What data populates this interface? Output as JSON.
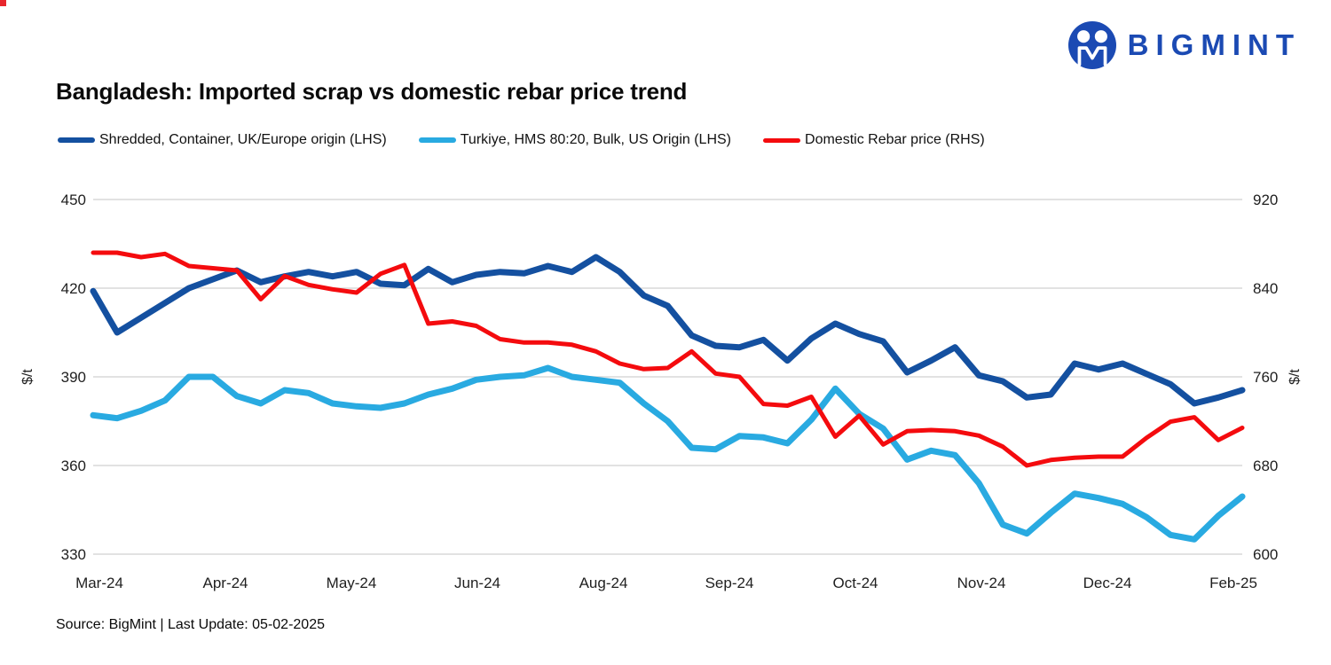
{
  "logo": {
    "text": "BIGMINT"
  },
  "title": "Bangladesh: Imported scrap vs domestic rebar price trend",
  "legend": [
    {
      "label": "Shredded, Container, UK/Europe origin (LHS)",
      "color": "#1450a0"
    },
    {
      "label": "Turkiye, HMS 80:20, Bulk, US Origin (LHS)",
      "color": "#29aae1"
    },
    {
      "label": "Domestic Rebar price (RHS)",
      "color": "#f40b0e"
    }
  ],
  "source": "Source: BigMint | Last Update: 05-02-2025",
  "colors": {
    "shredded_line": "#1450a0",
    "turkiye_line": "#29aae1",
    "rebar_line": "#f40b0e",
    "gridline": "#d9d9d9",
    "axis_text": "#1f1f1f",
    "logo_blue": "#1b4ab3"
  },
  "chart_data": {
    "type": "line",
    "title": "Bangladesh: Imported scrap vs domestic rebar price trend",
    "grid": true,
    "legend_position": "top",
    "left_axis": {
      "label": "$/t",
      "min": 330,
      "max": 450,
      "ticks": [
        450,
        420,
        390,
        360,
        330
      ]
    },
    "right_axis": {
      "label": "$/t",
      "min": 600,
      "max": 920,
      "ticks": [
        920,
        840,
        760,
        680,
        600
      ]
    },
    "x_labels": [
      "Mar-24",
      "Apr-24",
      "May-24",
      "Jun-24",
      "Aug-24",
      "Sep-24",
      "Oct-24",
      "Nov-24",
      "Dec-24",
      "Feb-25"
    ],
    "x_note": "weekly observations, Mar-2024 to Feb-2025",
    "series": [
      {
        "name": "Shredded, Container, UK/Europe origin (LHS)",
        "axis": "left",
        "color": "#1450a0",
        "width": 7,
        "values": [
          419,
          405,
          410,
          415,
          420,
          423,
          426,
          422,
          424,
          425.5,
          424,
          425.5,
          421.5,
          421,
          426.5,
          422,
          424.5,
          425.5,
          425,
          427.5,
          425.5,
          430.5,
          425.5,
          417.5,
          414,
          404,
          400.5,
          400,
          402.5,
          395.5,
          403,
          408,
          404.5,
          402,
          391.5,
          395.5,
          400,
          390.5,
          388.5,
          383,
          384,
          394.5,
          392.5,
          394.5,
          391,
          387.5,
          381,
          383,
          385.5
        ]
      },
      {
        "name": "Turkiye, HMS 80:20, Bulk, US Origin (LHS)",
        "axis": "left",
        "color": "#29aae1",
        "width": 7,
        "values": [
          377,
          376,
          378.5,
          382,
          390,
          390,
          383.5,
          381,
          385.5,
          384.5,
          381,
          380,
          379.5,
          381,
          384,
          386,
          389,
          390,
          390.5,
          393,
          390,
          389,
          388,
          381,
          375,
          366,
          365.5,
          370,
          369.5,
          367.5,
          375.5,
          386,
          377.5,
          372.5,
          362,
          365,
          363.5,
          354,
          340,
          337,
          344,
          350.5,
          349,
          347,
          342.5,
          336.5,
          335,
          343,
          349.5
        ]
      },
      {
        "name": "Domestic Rebar price (RHS)",
        "axis": "right",
        "color": "#f40b0e",
        "width": 5,
        "values": [
          872,
          872,
          868,
          871,
          860,
          858,
          856,
          830,
          851,
          843,
          839,
          836,
          853,
          861,
          808,
          810,
          806,
          794,
          791,
          791,
          789,
          783,
          772,
          767,
          768,
          783,
          763,
          760,
          735.5,
          734,
          742,
          706,
          725,
          699,
          711,
          712,
          711,
          707,
          697,
          680,
          685,
          687,
          688,
          688,
          705,
          719.5,
          723.5,
          703,
          714
        ]
      }
    ]
  }
}
